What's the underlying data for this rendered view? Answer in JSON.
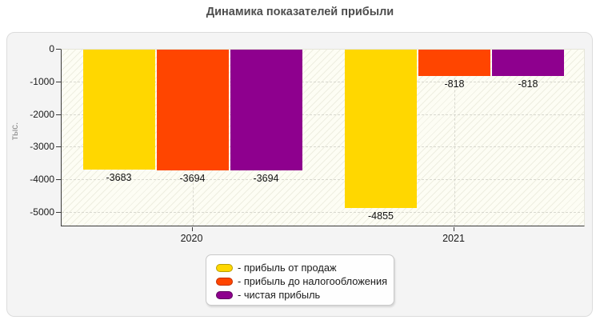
{
  "chart_data": {
    "type": "bar",
    "title": "Динамика показателей прибыли",
    "ylabel": "тыс.",
    "xlabel": "",
    "categories": [
      "2020",
      "2021"
    ],
    "series": [
      {
        "name": "прибыль от продаж",
        "color": "#ffd700",
        "swatch_border": "#b89e00",
        "values": [
          -3683,
          -4855
        ]
      },
      {
        "name": "прибыль до налогообложения",
        "color": "#ff4500",
        "swatch_border": "#c23000",
        "values": [
          -3694,
          -818
        ]
      },
      {
        "name": "чистая прибыль",
        "color": "#8e008e",
        "swatch_border": "#5e005e",
        "values": [
          -3694,
          -818
        ]
      }
    ],
    "value_labels": [
      [
        "-3683",
        "-3694",
        "-3694"
      ],
      [
        "-4855",
        "-818",
        "-818"
      ]
    ],
    "yticks": [
      0,
      -1000,
      -2000,
      -3000,
      -4000,
      -5000
    ],
    "ytick_labels": [
      "0",
      "-1000",
      "-2000",
      "-3000",
      "-4000",
      "-5000"
    ],
    "ylim": [
      -5000,
      0
    ],
    "grid": "dashed",
    "legend_position": "bottom",
    "legend_item_prefix": "- ",
    "colors": {
      "plot_background": "#fdfdf4",
      "panel_background": "#f4f4f4",
      "axis_line": "#3b3b3b",
      "gridline": "#d8d8cf",
      "title_text": "#4d4d4d",
      "tick_text": "#1a1a1a",
      "ylabel_text": "#8a8a8a"
    }
  }
}
